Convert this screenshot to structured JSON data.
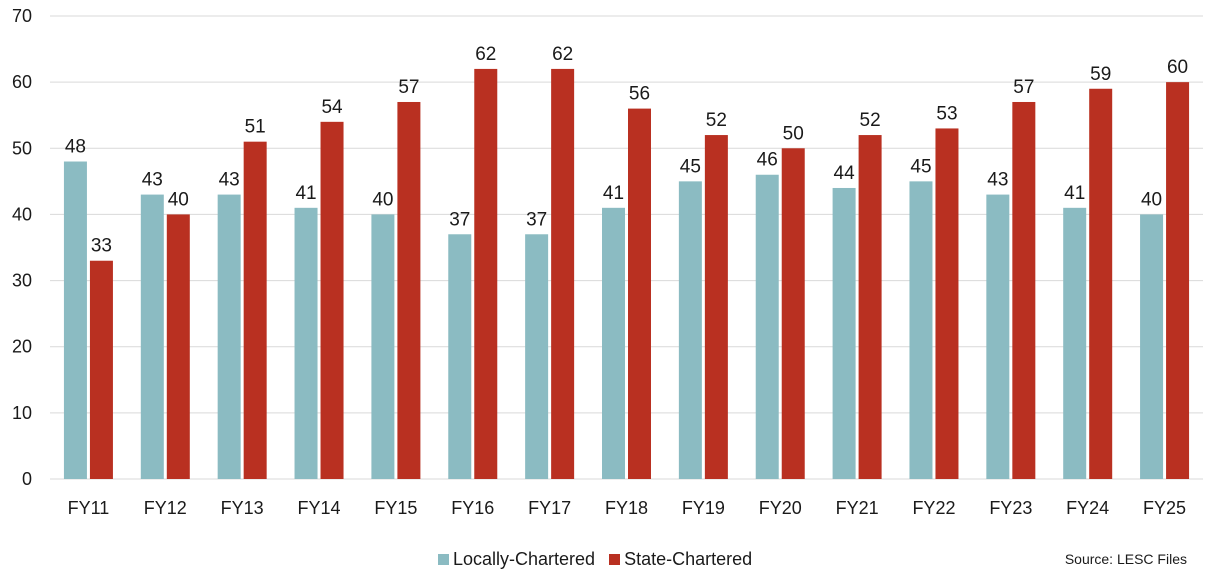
{
  "chart_data": {
    "type": "bar",
    "categories": [
      "FY11",
      "FY12",
      "FY13",
      "FY14",
      "FY15",
      "FY16",
      "FY17",
      "FY18",
      "FY19",
      "FY20",
      "FY21",
      "FY22",
      "FY23",
      "FY24",
      "FY25"
    ],
    "series": [
      {
        "name": "Locally-Chartered",
        "color": "#8BBBC2",
        "values": [
          48,
          43,
          43,
          41,
          40,
          37,
          37,
          41,
          45,
          46,
          44,
          45,
          43,
          41,
          40
        ]
      },
      {
        "name": "State-Chartered",
        "color": "#B93021",
        "values": [
          33,
          40,
          51,
          54,
          57,
          62,
          62,
          56,
          52,
          50,
          52,
          53,
          57,
          59,
          60
        ]
      }
    ],
    "ylim": [
      0,
      70
    ],
    "yticks": [
      0,
      10,
      20,
      30,
      40,
      50,
      60,
      70
    ],
    "grid": true,
    "legend_position": "bottom-center",
    "title": "",
    "xlabel": "",
    "ylabel": ""
  },
  "legend": {
    "local_label": "Locally-Chartered",
    "state_label": "State-Chartered"
  },
  "source_note": "Source: LESC Files"
}
